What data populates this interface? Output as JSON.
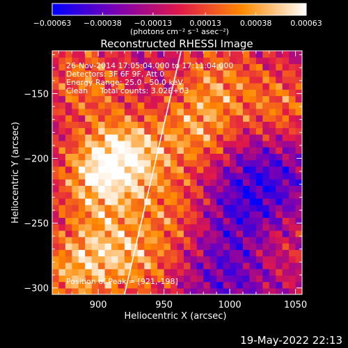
{
  "chart_data": {
    "type": "heatmap",
    "title": "Reconstructed RHESSI Image",
    "xlabel": "Heliocentric X (arcsec)",
    "ylabel": "Heliocentric Y (arcsec)",
    "xlim": [
      865,
      1055
    ],
    "ylim": [
      -305,
      -117
    ],
    "x_ticks": [
      900,
      950,
      1000,
      1050
    ],
    "x_tick_labels": [
      "900",
      "950",
      "1000",
      "1050"
    ],
    "y_ticks": [
      -300,
      -250,
      -200,
      -150
    ],
    "y_tick_labels": [
      "−300",
      "−250",
      "−200",
      "−150"
    ],
    "colorbar": {
      "min": -0.00063,
      "max": 0.00063,
      "ticks": [
        -0.00063,
        -0.00038,
        -0.00013,
        0.00013,
        0.00038,
        0.00063
      ],
      "tick_labels": [
        "−0.00063",
        "−0.00038",
        "−0.00013",
        "0.00013",
        "0.00038",
        "0.00063"
      ],
      "unit_label": "(photons cm⁻² s⁻¹ asec⁻²)",
      "colors": [
        "#0000ff",
        "#7a00b4",
        "#e0184a",
        "#ff8a00",
        "#ffffff"
      ]
    },
    "annotations": [
      "26-Nov-2014 17:05:04.000 to 17:11:04.000",
      "Detectors: 3F 6F 9F, Att 0",
      "Energy Range: 25.0 - 50.0 keV",
      "Clean     Total counts: 3.02E+03"
    ],
    "peak_label": "Position of Peak = [921,-198]",
    "peak_position": [
      921,
      -198
    ],
    "limb_line": [
      [
        920,
        -305
      ],
      [
        963,
        -117
      ]
    ],
    "limb_color": "#ffffff",
    "image_grid": {
      "nx": 38,
      "ny": 38,
      "hot_spots": [
        {
          "x": 921,
          "y": -198,
          "amp": 0.0006
        },
        {
          "x": 898,
          "y": -215,
          "amp": 0.00045
        },
        {
          "x": 890,
          "y": -140,
          "amp": 0.00035
        },
        {
          "x": 905,
          "y": -265,
          "amp": 0.00035
        },
        {
          "x": 935,
          "y": -282,
          "amp": 0.0003
        },
        {
          "x": 975,
          "y": -180,
          "amp": 0.0004
        },
        {
          "x": 990,
          "y": -140,
          "amp": 0.00035
        },
        {
          "x": 960,
          "y": -240,
          "amp": 0.0003
        },
        {
          "x": 1040,
          "y": -160,
          "amp": 0.00035
        },
        {
          "x": 1035,
          "y": -265,
          "amp": 0.0002
        },
        {
          "x": 880,
          "y": -290,
          "amp": 0.0004
        }
      ],
      "cold_spots": [
        {
          "x": 1010,
          "y": -240,
          "amp": 0.0003
        },
        {
          "x": 1030,
          "y": -210,
          "amp": 0.00025
        },
        {
          "x": 1000,
          "y": -290,
          "amp": 0.00025
        }
      ]
    }
  },
  "footer": {
    "date": "19-May-2022 22:13"
  }
}
